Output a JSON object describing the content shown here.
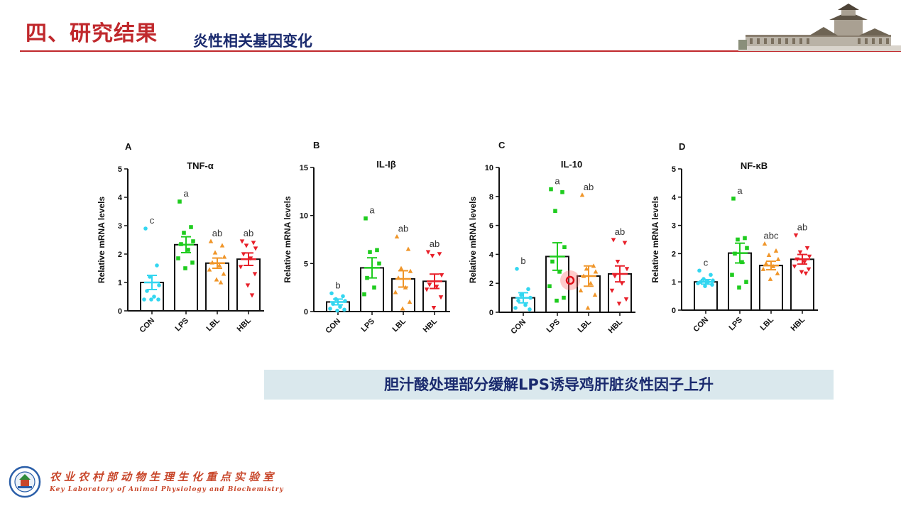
{
  "header": {
    "title": "四、研究结果",
    "subtitle": "炎性相关基因变化"
  },
  "banner": "胆汁酸处理部分缓解LPS诱导鸡肝脏炎性因子上升",
  "footer": {
    "lab_name_cn": "农业农村部动物生理生化重点实验室",
    "lab_name_en": "Key Laboratory of Animal Physiology and Biochemistry"
  },
  "colors": {
    "title_red": "#c0282c",
    "navy": "#1a2a6e",
    "banner_bg": "#dae8ed",
    "CON": "#33d6f0",
    "LPS": "#1fcc1f",
    "LBL": "#f0962a",
    "HBL": "#e8202a"
  },
  "chart_data": [
    {
      "type": "bar",
      "panel": "A",
      "title": "TNF-α",
      "ylabel": "Relative mRNA levels",
      "categories": [
        "CON",
        "LPS",
        "LBL",
        "HBL"
      ],
      "values": [
        1.0,
        2.33,
        1.68,
        1.82
      ],
      "sem": [
        0.25,
        0.28,
        0.18,
        0.22
      ],
      "significance": [
        "c",
        "a",
        "ab",
        "ab"
      ],
      "ylim": [
        0,
        5
      ],
      "yticks": [
        "0",
        "1",
        "2",
        "3",
        "4",
        "5"
      ],
      "points": [
        [
          2.9,
          1.6,
          1.2,
          0.9,
          0.7,
          0.5,
          0.4,
          0.4,
          0.4
        ],
        [
          3.85,
          2.95,
          2.75,
          2.45,
          2.35,
          2.15,
          1.85,
          1.7,
          1.5
        ],
        [
          2.45,
          2.3,
          2.05,
          1.9,
          1.7,
          1.6,
          1.45,
          1.3,
          1.1,
          1.0
        ],
        [
          2.45,
          2.4,
          2.3,
          2.2,
          2.0,
          1.85,
          1.55,
          1.3,
          0.9,
          0.55
        ]
      ]
    },
    {
      "type": "bar",
      "panel": "B",
      "title": "IL-Iβ",
      "ylabel": "Relative mRNA levels",
      "categories": [
        "CON",
        "LPS",
        "LBL",
        "HBL"
      ],
      "values": [
        1.0,
        4.55,
        3.4,
        3.15
      ],
      "sem": [
        0.3,
        1.05,
        0.85,
        0.75
      ],
      "significance": [
        "b",
        "a",
        "ab",
        "ab"
      ],
      "ylim": [
        0,
        15
      ],
      "yticks": [
        "0",
        "5",
        "10",
        "15"
      ],
      "points": [
        [
          1.9,
          1.6,
          1.3,
          1.1,
          0.8,
          0.5,
          0.3,
          0.2,
          0.1
        ],
        [
          9.7,
          6.4,
          6.2,
          5.0,
          3.5,
          2.5,
          1.8
        ],
        [
          7.8,
          6.5,
          4.5,
          4.2,
          3.5,
          2.5,
          2.0,
          1.0,
          0.3
        ],
        [
          6.2,
          6.0,
          5.8,
          3.8,
          2.8,
          2.6,
          2.3,
          1.5,
          0.4
        ]
      ]
    },
    {
      "type": "bar",
      "panel": "C",
      "title": "IL-10",
      "ylabel": "Relative mRNA levels",
      "categories": [
        "CON",
        "LPS",
        "LBL",
        "HBL"
      ],
      "values": [
        1.0,
        3.85,
        2.5,
        2.65
      ],
      "sem": [
        0.35,
        0.95,
        0.7,
        0.55
      ],
      "significance": [
        "b",
        "a",
        "ab",
        "ab"
      ],
      "ylim": [
        0,
        10
      ],
      "yticks": [
        "0",
        "2",
        "4",
        "6",
        "8",
        "10"
      ],
      "points": [
        [
          3.0,
          1.6,
          1.2,
          1.0,
          0.8,
          0.5,
          0.3,
          0.2
        ],
        [
          8.5,
          8.3,
          7.0,
          4.5,
          3.5,
          2.8,
          1.8,
          1.0,
          0.8
        ],
        [
          8.1,
          3.2,
          3.0,
          2.8,
          2.5,
          2.0,
          1.5,
          1.2,
          0.3
        ],
        [
          5.0,
          4.8,
          3.5,
          3.0,
          2.5,
          2.0,
          1.5,
          0.9,
          0.6
        ]
      ]
    },
    {
      "type": "bar",
      "panel": "D",
      "title": "NF-κB",
      "ylabel": "Relative mRNA levels",
      "categories": [
        "CON",
        "LPS",
        "LBL",
        "HBL"
      ],
      "values": [
        1.0,
        2.02,
        1.58,
        1.8
      ],
      "sem": [
        0.08,
        0.35,
        0.15,
        0.17
      ],
      "significance": [
        "c",
        "a",
        "abc",
        "ab"
      ],
      "ylim": [
        0,
        5
      ],
      "yticks": [
        "0",
        "1",
        "2",
        "3",
        "4",
        "5"
      ],
      "points": [
        [
          1.4,
          1.25,
          1.1,
          1.05,
          1.0,
          1.0,
          0.95,
          0.9,
          0.85
        ],
        [
          3.95,
          2.55,
          2.5,
          2.2,
          2.0,
          1.7,
          1.25,
          1.0,
          0.8
        ],
        [
          2.35,
          2.1,
          1.95,
          1.8,
          1.65,
          1.55,
          1.45,
          1.3,
          1.1
        ],
        [
          2.65,
          2.2,
          2.05,
          1.9,
          1.8,
          1.7,
          1.55,
          1.45,
          1.35,
          1.3
        ]
      ]
    }
  ]
}
